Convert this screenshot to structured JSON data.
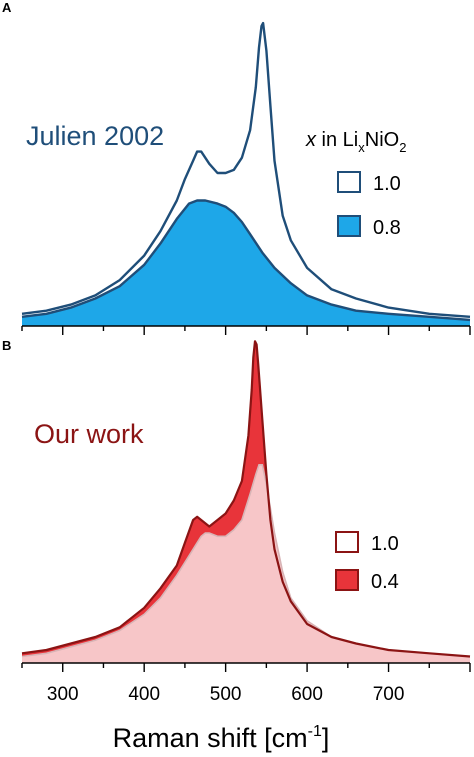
{
  "colors": {
    "navy": "#1f4e79",
    "cyan_fill": "#1ea7e8",
    "darkred": "#8b1414",
    "red_fill": "#e8343a",
    "pink_fill": "#f7c6c8",
    "axis": "#000000"
  },
  "chart_data": [
    {
      "panel_label": "A",
      "type": "line",
      "annotation": "Julien 2002",
      "legend_title_var": "x",
      "legend_title_text": " in Li",
      "legend_title_sub": "x",
      "legend_title_text2": "NiO",
      "legend_title_sub2": "2",
      "legend_placement": "right",
      "xlim": [
        250,
        800
      ],
      "x_ticks_major": [
        300,
        400,
        500,
        600,
        700
      ],
      "series": [
        {
          "name": "1.0",
          "style": "outline",
          "x": [
            250,
            280,
            310,
            340,
            370,
            400,
            420,
            440,
            450,
            460,
            465,
            470,
            480,
            490,
            500,
            510,
            520,
            530,
            537,
            541,
            544,
            546,
            550,
            555,
            560,
            570,
            580,
            600,
            630,
            660,
            700,
            750,
            800
          ],
          "y": [
            0.04,
            0.05,
            0.07,
            0.1,
            0.15,
            0.23,
            0.31,
            0.41,
            0.48,
            0.54,
            0.57,
            0.57,
            0.53,
            0.5,
            0.5,
            0.51,
            0.55,
            0.64,
            0.78,
            0.91,
            0.98,
            0.99,
            0.9,
            0.72,
            0.54,
            0.36,
            0.28,
            0.19,
            0.12,
            0.09,
            0.06,
            0.04,
            0.03
          ]
        },
        {
          "name": "0.8",
          "style": "filled",
          "x": [
            250,
            280,
            310,
            340,
            370,
            400,
            420,
            440,
            455,
            465,
            475,
            490,
            500,
            510,
            520,
            530,
            545,
            560,
            580,
            600,
            630,
            660,
            700,
            750,
            800
          ],
          "y": [
            0.03,
            0.04,
            0.06,
            0.09,
            0.13,
            0.2,
            0.27,
            0.35,
            0.4,
            0.41,
            0.41,
            0.4,
            0.39,
            0.37,
            0.34,
            0.3,
            0.24,
            0.19,
            0.14,
            0.1,
            0.07,
            0.05,
            0.04,
            0.03,
            0.02
          ]
        }
      ]
    },
    {
      "panel_label": "B",
      "type": "line",
      "annotation": "Our work",
      "legend_placement": "right",
      "xlim": [
        250,
        800
      ],
      "x_ticks_major": [
        300,
        400,
        500,
        600,
        700
      ],
      "xlabel": "Raman shift [cm",
      "xlabel_sup": "-1",
      "xlabel_end": "]",
      "series": [
        {
          "name": "1.0",
          "style": "pink-filled",
          "x": [
            250,
            280,
            310,
            340,
            370,
            400,
            420,
            440,
            455,
            465,
            470,
            475,
            480,
            490,
            500,
            510,
            520,
            530,
            537,
            541,
            545,
            550,
            560,
            570,
            580,
            600,
            630,
            660,
            700,
            750,
            800
          ],
          "y": [
            0.02,
            0.03,
            0.05,
            0.07,
            0.1,
            0.15,
            0.2,
            0.27,
            0.33,
            0.37,
            0.39,
            0.4,
            0.4,
            0.39,
            0.39,
            0.41,
            0.44,
            0.52,
            0.58,
            0.61,
            0.61,
            0.55,
            0.4,
            0.28,
            0.2,
            0.13,
            0.08,
            0.06,
            0.04,
            0.03,
            0.02
          ]
        },
        {
          "name": "0.4",
          "style": "red-filled",
          "x": [
            250,
            280,
            310,
            340,
            370,
            400,
            420,
            440,
            450,
            460,
            465,
            470,
            480,
            490,
            500,
            510,
            520,
            528,
            532,
            534,
            536,
            538,
            540,
            545,
            550,
            555,
            560,
            570,
            580,
            600,
            630,
            660,
            700,
            750,
            800
          ],
          "y": [
            0.03,
            0.04,
            0.06,
            0.08,
            0.11,
            0.17,
            0.23,
            0.3,
            0.37,
            0.44,
            0.45,
            0.44,
            0.42,
            0.44,
            0.46,
            0.5,
            0.56,
            0.7,
            0.84,
            0.94,
            0.99,
            0.98,
            0.92,
            0.75,
            0.58,
            0.44,
            0.35,
            0.25,
            0.19,
            0.12,
            0.08,
            0.06,
            0.04,
            0.03,
            0.02
          ]
        }
      ]
    }
  ]
}
